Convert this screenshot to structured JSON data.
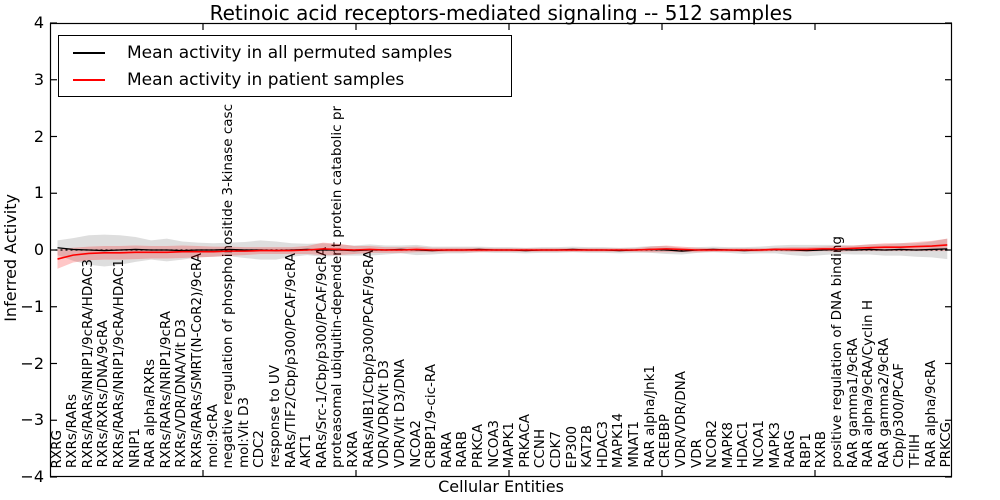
{
  "title": "Retinoic acid receptors-mediated signaling -- 512 samples",
  "axes": {
    "x_label": "Cellular Entities",
    "y_label": "Inferred Activity"
  },
  "legend": {
    "items": [
      {
        "label": "Mean activity in all permuted samples",
        "color": "#000000"
      },
      {
        "label": "Mean activity in patient samples",
        "color": "#ff0000"
      }
    ]
  },
  "colors": {
    "permuted_line": "#000000",
    "patient_line": "#ff0000",
    "permuted_band": "rgba(0,0,0,0.13)",
    "patient_band": "rgba(255,0,0,0.22)",
    "zero_line": "#000000"
  },
  "chart_data": {
    "type": "line",
    "title": "Retinoic acid receptors-mediated signaling -- 512 samples",
    "xlabel": "Cellular Entities",
    "ylabel": "Inferred Activity",
    "ylim": [
      -4,
      4
    ],
    "grid": false,
    "legend_position": "upper left",
    "zero_line_style": "dotted",
    "y_tick_values": [
      4,
      3,
      2,
      1,
      0,
      -1,
      -2,
      -3,
      -4
    ],
    "y_tick_labels": [
      "4",
      "3",
      "2",
      "1",
      "0",
      "−1",
      "−2",
      "−3",
      "−4"
    ],
    "categories": [
      "RXRG",
      "RXRs/RARs",
      "RXRs/RARs/NRIP1/9cRA/HDAC3",
      "RXRs/RXRs/DNA/9cRA",
      "RXRs/RARs/NRIP1/9cRA/HDAC1",
      "NRIP1",
      "RAR alpha/RXRs",
      "RXRs/RARs/NRIP1/9cRA",
      "RXRs/VDR/DNA/Vit D3",
      "RXRs/RARs/SMRT(N-CoR2)/9cRA",
      "mol:9cRA",
      "negative regulation of phosphoinositide 3-kinase casc",
      "mol:Vit D3",
      "CDC2",
      "response to UV",
      "RARs/TIF2/Cbp/p300/PCAF/9cRA",
      "AKT1",
      "RARs/Src-1/Cbp/p300/PCAF/9cRA",
      "proteasomal ubiquitin-dependent protein catabolic pr",
      "RXRA",
      "RARs/AIB1/Cbp/p300/PCAF/9cRA",
      "VDR/VDR/Vit D3",
      "VDR/Vit D3/DNA",
      "NCOA2",
      "CRBP1/9-cic-RA",
      "RARA",
      "RARB",
      "PRKCA",
      "NCOA3",
      "MAPK1",
      "PRKACA",
      "CCNH",
      "CDK7",
      "EP300",
      "KAT2B",
      "HDAC3",
      "MAPK14",
      "MNAT1",
      "RAR alpha/Jnk1",
      "CREBBP",
      "VDR/VDR/DNA",
      "VDR",
      "NCOR2",
      "MAPK8",
      "HDAC1",
      "NCOA1",
      "MAPK3",
      "RARG",
      "RBP1",
      "RXRB",
      "positive regulation of DNA binding",
      "RAR gamma1/9cRA",
      "RAR alpha/9cRA/Cyclin H",
      "RAR gamma2/9cRA",
      "Cbp/p300/PCAF",
      "TFIIH",
      "RAR alpha/9cRA",
      "PRKCG"
    ],
    "series": [
      {
        "name": "Mean activity in all permuted samples",
        "color": "#000000",
        "band_color": "rgba(0,0,0,0.13)",
        "values": [
          0.04,
          0.01,
          0.0,
          -0.01,
          0.0,
          0.01,
          0.0,
          0.0,
          -0.01,
          0.0,
          0.0,
          0.01,
          0.0,
          0.0,
          -0.01,
          0.0,
          0.01,
          0.0,
          0.0,
          -0.01,
          0.0,
          0.0,
          0.01,
          0.0,
          -0.01,
          0.0,
          0.0,
          0.01,
          0.0,
          0.0,
          -0.01,
          0.0,
          0.0,
          0.01,
          0.0,
          0.0,
          -0.01,
          0.0,
          0.01,
          0.0,
          -0.02,
          0.0,
          0.01,
          0.0,
          -0.01,
          0.0,
          0.01,
          0.0,
          -0.01,
          0.0,
          0.01,
          0.0,
          0.01,
          0.0,
          0.01,
          0.0,
          0.01,
          0.02
        ],
        "band_halfwidth": [
          0.13,
          0.2,
          0.26,
          0.28,
          0.26,
          0.22,
          0.17,
          0.2,
          0.16,
          0.13,
          0.12,
          0.12,
          0.14,
          0.17,
          0.16,
          0.12,
          0.1,
          0.12,
          0.1,
          0.09,
          0.1,
          0.08,
          0.07,
          0.09,
          0.07,
          0.06,
          0.06,
          0.05,
          0.05,
          0.05,
          0.05,
          0.05,
          0.05,
          0.05,
          0.05,
          0.05,
          0.05,
          0.05,
          0.06,
          0.07,
          0.06,
          0.05,
          0.05,
          0.05,
          0.06,
          0.06,
          0.07,
          0.09,
          0.1,
          0.09,
          0.08,
          0.08,
          0.09,
          0.1,
          0.11,
          0.12,
          0.14,
          0.18
        ]
      },
      {
        "name": "Mean activity in patient samples",
        "color": "#ff0000",
        "band_color": "rgba(255,0,0,0.22)",
        "values": [
          -0.16,
          -0.09,
          -0.06,
          -0.05,
          -0.05,
          -0.04,
          -0.04,
          -0.04,
          -0.03,
          -0.03,
          -0.03,
          -0.02,
          -0.02,
          -0.01,
          -0.01,
          -0.01,
          0.0,
          0.02,
          0.01,
          0.0,
          0.01,
          0.0,
          0.0,
          0.01,
          0.0,
          0.0,
          0.0,
          0.0,
          0.0,
          0.0,
          0.0,
          0.0,
          0.0,
          0.0,
          0.0,
          0.0,
          0.0,
          0.0,
          0.01,
          0.02,
          0.01,
          0.0,
          0.0,
          0.0,
          0.0,
          0.0,
          0.01,
          0.01,
          0.01,
          0.02,
          0.02,
          0.03,
          0.04,
          0.05,
          0.05,
          0.06,
          0.07,
          0.09
        ],
        "band_halfwidth": [
          0.17,
          0.13,
          0.12,
          0.12,
          0.12,
          0.12,
          0.11,
          0.11,
          0.11,
          0.1,
          0.09,
          0.08,
          0.07,
          0.06,
          0.06,
          0.06,
          0.07,
          0.11,
          0.1,
          0.07,
          0.06,
          0.05,
          0.05,
          0.05,
          0.04,
          0.04,
          0.04,
          0.04,
          0.03,
          0.03,
          0.03,
          0.03,
          0.03,
          0.03,
          0.03,
          0.03,
          0.03,
          0.03,
          0.05,
          0.06,
          0.05,
          0.04,
          0.03,
          0.03,
          0.03,
          0.03,
          0.03,
          0.04,
          0.04,
          0.04,
          0.05,
          0.05,
          0.06,
          0.07,
          0.07,
          0.08,
          0.09,
          0.11
        ]
      }
    ]
  }
}
